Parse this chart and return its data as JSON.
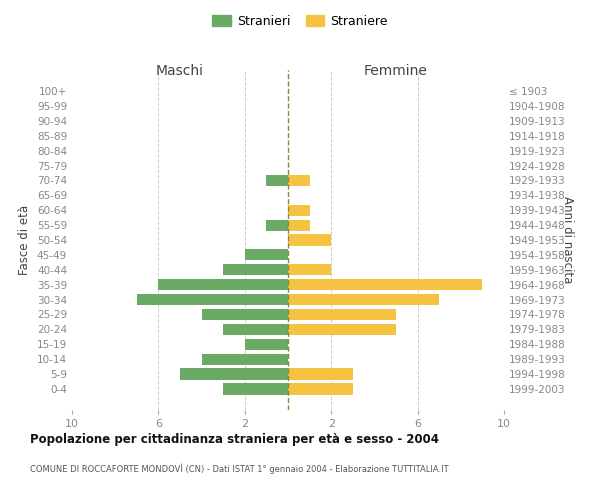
{
  "age_groups": [
    "100+",
    "95-99",
    "90-94",
    "85-89",
    "80-84",
    "75-79",
    "70-74",
    "65-69",
    "60-64",
    "55-59",
    "50-54",
    "45-49",
    "40-44",
    "35-39",
    "30-34",
    "25-29",
    "20-24",
    "15-19",
    "10-14",
    "5-9",
    "0-4"
  ],
  "birth_years": [
    "≤ 1903",
    "1904-1908",
    "1909-1913",
    "1914-1918",
    "1919-1923",
    "1924-1928",
    "1929-1933",
    "1934-1938",
    "1939-1943",
    "1944-1948",
    "1949-1953",
    "1954-1958",
    "1959-1963",
    "1964-1968",
    "1969-1973",
    "1974-1978",
    "1979-1983",
    "1984-1988",
    "1989-1993",
    "1994-1998",
    "1999-2003"
  ],
  "maschi": [
    0,
    0,
    0,
    0,
    0,
    0,
    1,
    0,
    0,
    1,
    0,
    2,
    3,
    6,
    7,
    4,
    3,
    2,
    4,
    5,
    3
  ],
  "femmine": [
    0,
    0,
    0,
    0,
    0,
    0,
    1,
    0,
    1,
    1,
    2,
    0,
    2,
    9,
    7,
    5,
    5,
    0,
    0,
    3,
    3
  ],
  "color_maschi": "#6aaa64",
  "color_femmine": "#f5c242",
  "color_center_line": "#888844",
  "xlim": 10,
  "title": "Popolazione per cittadinanza straniera per età e sesso - 2004",
  "subtitle": "COMUNE DI ROCCAFORTE MONDOVÌ (CN) - Dati ISTAT 1° gennaio 2004 - Elaborazione TUTTITALIA.IT",
  "label_maschi": "Maschi",
  "label_femmine": "Femmine",
  "legend_stranieri": "Stranieri",
  "legend_straniere": "Straniere",
  "ylabel_left": "Fasce di età",
  "ylabel_right": "Anni di nascita",
  "background_color": "#ffffff",
  "grid_color": "#cccccc"
}
